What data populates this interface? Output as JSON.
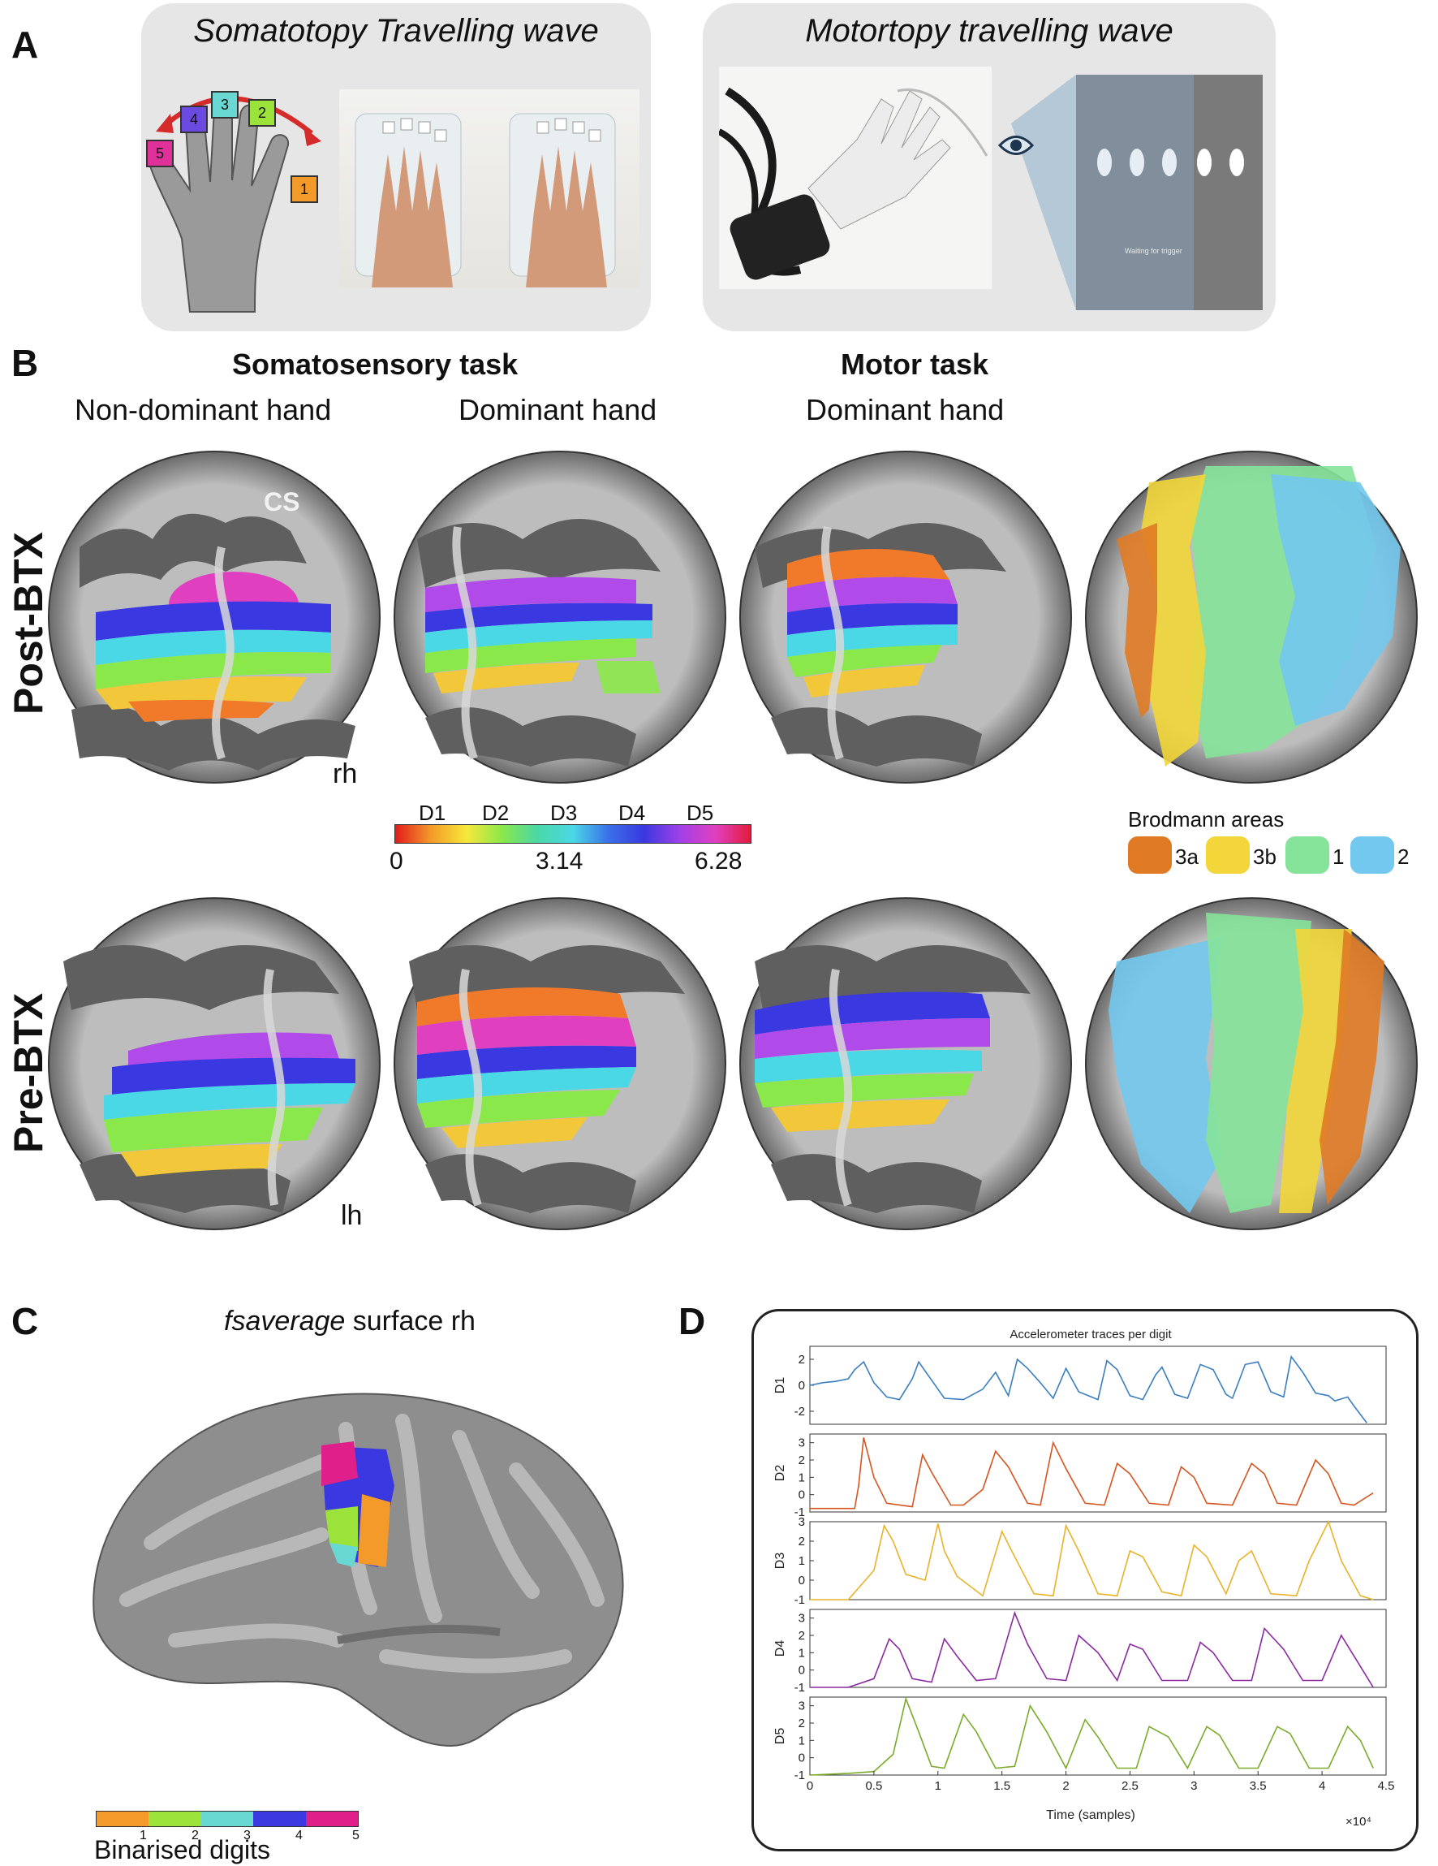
{
  "panelA": {
    "letter": "A",
    "left_title": "Somatotopy Travelling wave",
    "right_title": "Motortopy travelling wave",
    "finger_labels": [
      "1",
      "2",
      "3",
      "4",
      "5"
    ],
    "screen_text": "Waiting for trigger"
  },
  "panelB": {
    "letter": "B",
    "task_somato": "Somatosensory task",
    "task_motor": "Motor task",
    "col1": "Non-dominant hand",
    "col2": "Dominant hand",
    "col3": "Dominant hand",
    "row_post": "Post-BTX",
    "row_pre": "Pre-BTX",
    "cs_label": "CS",
    "rh_label": "rh",
    "lh_label": "lh",
    "colorbar": {
      "digits": [
        "D1",
        "D2",
        "D3",
        "D4",
        "D5"
      ],
      "ticks": [
        "0",
        "3.14",
        "6.28"
      ]
    },
    "brodmann": {
      "title": "Brodmann areas",
      "items": [
        {
          "label": "3a",
          "color": "#e07a25"
        },
        {
          "label": "3b",
          "color": "#f2d63a"
        },
        {
          "label": "1",
          "color": "#86e39a"
        },
        {
          "label": "2",
          "color": "#72c8ee"
        }
      ]
    }
  },
  "panelC": {
    "letter": "C",
    "title_italic": "fsaverage",
    "title_rest": " surface rh",
    "legend_title": "Binarised digits",
    "legend_ticks": [
      "1",
      "2",
      "3",
      "4",
      "5"
    ],
    "legend_colors": [
      "#f39a2a",
      "#9be33a",
      "#6ad8d2",
      "#3a3ae0",
      "#e0208a"
    ]
  },
  "panelD": {
    "letter": "D",
    "chart_data": {
      "type": "line",
      "title": "Accelerometer traces per digit",
      "xlabel": "Time (samples)",
      "x_multiplier": "×10⁴",
      "xlim": [
        0,
        4.5
      ],
      "xticks": [
        "0",
        "0.5",
        "1",
        "1.5",
        "2",
        "2.5",
        "3",
        "3.5",
        "4",
        "4.5"
      ],
      "series": [
        {
          "name": "D1",
          "color": "#3a7ebf",
          "ylim": [
            -3,
            3
          ],
          "yticks": [
            "2",
            "0",
            "-2"
          ],
          "x": [
            0,
            0.1,
            0.2,
            0.3,
            0.35,
            0.42,
            0.5,
            0.6,
            0.7,
            0.8,
            0.85,
            0.95,
            1.05,
            1.2,
            1.35,
            1.45,
            1.55,
            1.62,
            1.7,
            1.8,
            1.9,
            2.0,
            2.1,
            2.25,
            2.32,
            2.4,
            2.5,
            2.6,
            2.7,
            2.75,
            2.85,
            2.95,
            3.05,
            3.15,
            3.25,
            3.3,
            3.4,
            3.5,
            3.6,
            3.7,
            3.76,
            3.85,
            3.95,
            4.05,
            4.1,
            4.2,
            4.25,
            4.35
          ],
          "y": [
            0,
            0.2,
            0.3,
            0.5,
            1.2,
            1.8,
            0.2,
            -0.9,
            -1.1,
            0.5,
            1.8,
            0.4,
            -1.0,
            -1.1,
            -0.3,
            1.0,
            -0.8,
            2.0,
            1.3,
            0.2,
            -1.0,
            1.3,
            -0.5,
            -1.1,
            1.9,
            1.2,
            -0.8,
            -1.1,
            0.8,
            1.4,
            -0.7,
            -1.0,
            1.6,
            1.2,
            -0.7,
            -1.0,
            1.6,
            1.8,
            -0.5,
            -0.9,
            2.2,
            1.0,
            -0.6,
            -0.8,
            -1.2,
            -0.9,
            -1.6,
            -2.9
          ]
        },
        {
          "name": "D2",
          "color": "#d4551f",
          "ylim": [
            -1,
            3.5
          ],
          "yticks": [
            "3",
            "2",
            "1",
            "0",
            "-1"
          ],
          "x": [
            0,
            0.2,
            0.35,
            0.38,
            0.42,
            0.5,
            0.6,
            0.8,
            0.88,
            0.95,
            1.1,
            1.2,
            1.35,
            1.45,
            1.55,
            1.7,
            1.8,
            1.9,
            2.0,
            2.15,
            2.3,
            2.4,
            2.5,
            2.65,
            2.8,
            2.9,
            3.0,
            3.1,
            3.3,
            3.45,
            3.55,
            3.65,
            3.8,
            3.95,
            4.05,
            4.15,
            4.25,
            4.4
          ],
          "y": [
            -0.8,
            -0.8,
            -0.8,
            0.5,
            3.3,
            1.0,
            -0.5,
            -0.7,
            2.3,
            1.3,
            -0.6,
            -0.6,
            0.3,
            2.5,
            1.6,
            -0.5,
            -0.6,
            3.0,
            1.5,
            -0.5,
            -0.6,
            1.8,
            1.2,
            -0.5,
            -0.6,
            1.6,
            1.0,
            -0.5,
            -0.6,
            1.8,
            1.2,
            -0.5,
            -0.6,
            2.0,
            1.2,
            -0.5,
            -0.6,
            0.1
          ]
        },
        {
          "name": "D3",
          "color": "#e8b32a",
          "ylim": [
            -1,
            3
          ],
          "yticks": [
            "3",
            "2",
            "1",
            "0",
            "-1"
          ],
          "x": [
            0,
            0.3,
            0.5,
            0.58,
            0.65,
            0.75,
            0.9,
            1.0,
            1.05,
            1.15,
            1.35,
            1.5,
            1.6,
            1.75,
            1.9,
            2.0,
            2.1,
            2.25,
            2.4,
            2.5,
            2.6,
            2.75,
            2.9,
            3.0,
            3.1,
            3.25,
            3.35,
            3.45,
            3.6,
            3.8,
            3.9,
            4.05,
            4.15,
            4.3,
            4.4
          ],
          "y": [
            -1,
            -1,
            0.5,
            2.8,
            2.0,
            0.3,
            0.0,
            2.9,
            1.5,
            0.2,
            -0.8,
            2.5,
            1.2,
            -0.7,
            -0.8,
            2.8,
            1.5,
            -0.7,
            -0.8,
            1.5,
            1.2,
            -0.6,
            -0.8,
            1.8,
            1.2,
            -0.7,
            1.0,
            1.5,
            -0.7,
            -0.8,
            1.0,
            3.0,
            1.0,
            -0.8,
            -1.0
          ]
        },
        {
          "name": "D4",
          "color": "#8a2aa0",
          "ylim": [
            -1,
            3.5
          ],
          "yticks": [
            "3",
            "2",
            "1",
            "0",
            "-1"
          ],
          "x": [
            0,
            0.3,
            0.5,
            0.62,
            0.7,
            0.8,
            0.95,
            1.05,
            1.15,
            1.3,
            1.45,
            1.6,
            1.7,
            1.85,
            2.0,
            2.1,
            2.25,
            2.4,
            2.5,
            2.6,
            2.75,
            2.95,
            3.05,
            3.15,
            3.3,
            3.45,
            3.55,
            3.7,
            3.85,
            4.0,
            4.15,
            4.25,
            4.4
          ],
          "y": [
            -1,
            -1,
            -0.5,
            1.8,
            1.2,
            -0.5,
            -0.7,
            1.8,
            0.8,
            -0.6,
            -0.5,
            3.3,
            1.5,
            -0.5,
            -0.6,
            2.0,
            1.0,
            -0.6,
            1.5,
            1.2,
            -0.6,
            -0.6,
            1.6,
            1.0,
            -0.6,
            -0.6,
            2.4,
            1.2,
            -0.6,
            -0.6,
            2.0,
            0.8,
            -1.0
          ]
        },
        {
          "name": "D5",
          "color": "#7aab2a",
          "ylim": [
            -1,
            3.5
          ],
          "yticks": [
            "3",
            "2",
            "1",
            "0",
            "-1"
          ],
          "x": [
            0,
            0.3,
            0.5,
            0.65,
            0.75,
            0.85,
            0.95,
            1.05,
            1.2,
            1.3,
            1.45,
            1.6,
            1.72,
            1.85,
            2.0,
            2.15,
            2.25,
            2.4,
            2.55,
            2.65,
            2.8,
            2.95,
            3.1,
            3.2,
            3.35,
            3.5,
            3.65,
            3.75,
            3.9,
            4.05,
            4.2,
            4.3,
            4.4
          ],
          "y": [
            -1,
            -0.9,
            -0.8,
            0.2,
            3.4,
            1.5,
            -0.5,
            -0.6,
            2.5,
            1.5,
            -0.6,
            -0.5,
            3.0,
            1.5,
            -0.6,
            2.2,
            1.2,
            -0.6,
            -0.6,
            1.8,
            1.2,
            -0.6,
            1.8,
            1.3,
            -0.6,
            -0.6,
            1.8,
            1.4,
            -0.6,
            -0.6,
            1.8,
            1.0,
            -0.6
          ]
        }
      ]
    }
  }
}
